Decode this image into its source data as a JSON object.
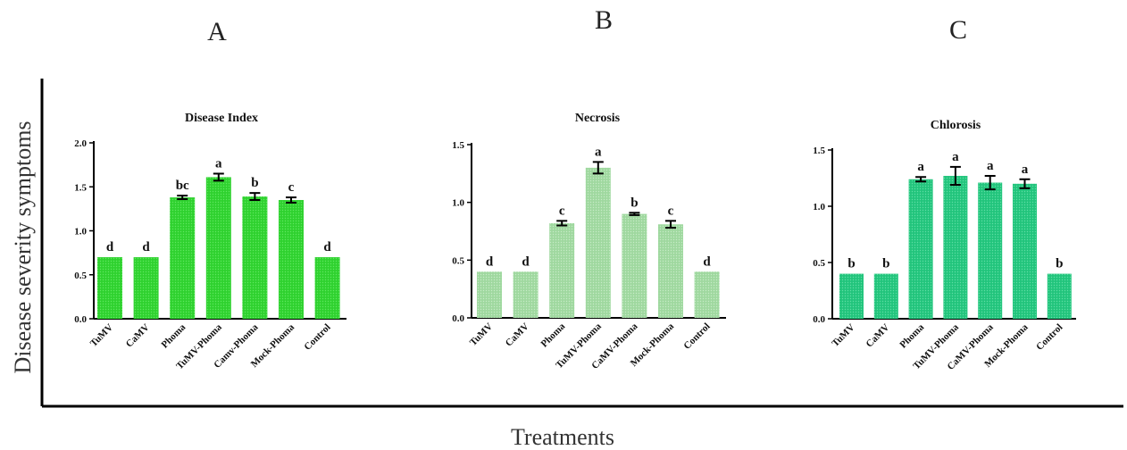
{
  "figure": {
    "ylabel": "Disease severity symptoms",
    "xlabel": "Treatments",
    "colors": {
      "panel_a_fill": "#2fd12f",
      "panel_a_dot": "#5fe85f",
      "panel_b_fill": "#9fd89f",
      "panel_b_dot": "#c6ecc6",
      "panel_c_fill": "#22c47c",
      "panel_c_dot": "#5edea4"
    }
  },
  "chart_data": [
    {
      "type": "bar",
      "panel_letter": "A",
      "title": "Disease  Index",
      "categories": [
        "TuMV",
        "CaMV",
        "Phoma",
        "TuMV-Phoma",
        "Camv-Phoma",
        "Mock-Phoma",
        "Control"
      ],
      "values": [
        0.7,
        0.7,
        1.38,
        1.61,
        1.39,
        1.35,
        0.7
      ],
      "errors": [
        0,
        0,
        0.02,
        0.04,
        0.04,
        0.03,
        0
      ],
      "significance": [
        "d",
        "d",
        "bc",
        "a",
        "b",
        "c",
        "d"
      ],
      "ylim": [
        0,
        2.0
      ],
      "yticks": [
        "0.0",
        "0.5",
        "1.0",
        "1.5",
        "2.0"
      ],
      "color": "#2fd12f"
    },
    {
      "type": "bar",
      "panel_letter": "B",
      "title": "Necrosis",
      "categories": [
        "TuMV",
        "CaMV",
        "Phoma",
        "TuMV-Phoma",
        "CaMV-Phoma",
        "Mock-Phoma",
        "Control"
      ],
      "values": [
        0.4,
        0.4,
        0.82,
        1.3,
        0.9,
        0.81,
        0.4
      ],
      "errors": [
        0,
        0,
        0.02,
        0.05,
        0.01,
        0.03,
        0
      ],
      "significance": [
        "d",
        "d",
        "c",
        "a",
        "b",
        "c",
        "d"
      ],
      "ylim": [
        0,
        1.5
      ],
      "yticks": [
        "0.0",
        "0.5",
        "1.0",
        "1.5"
      ],
      "color": "#9fd89f"
    },
    {
      "type": "bar",
      "panel_letter": "C",
      "title": "Chlorosis",
      "categories": [
        "TuMV",
        "CaMV",
        "Phoma",
        "TuMV-Phoma",
        "CaMV-Phoma",
        "Mock-Phoma",
        "Control"
      ],
      "values": [
        0.4,
        0.4,
        1.24,
        1.27,
        1.21,
        1.2,
        0.4
      ],
      "errors": [
        0,
        0,
        0.02,
        0.08,
        0.06,
        0.04,
        0
      ],
      "significance": [
        "b",
        "b",
        "a",
        "a",
        "a",
        "a",
        "b"
      ],
      "ylim": [
        0,
        1.5
      ],
      "yticks": [
        "0.0",
        "0.5",
        "1.0",
        "1.5"
      ],
      "color": "#22c47c"
    }
  ]
}
